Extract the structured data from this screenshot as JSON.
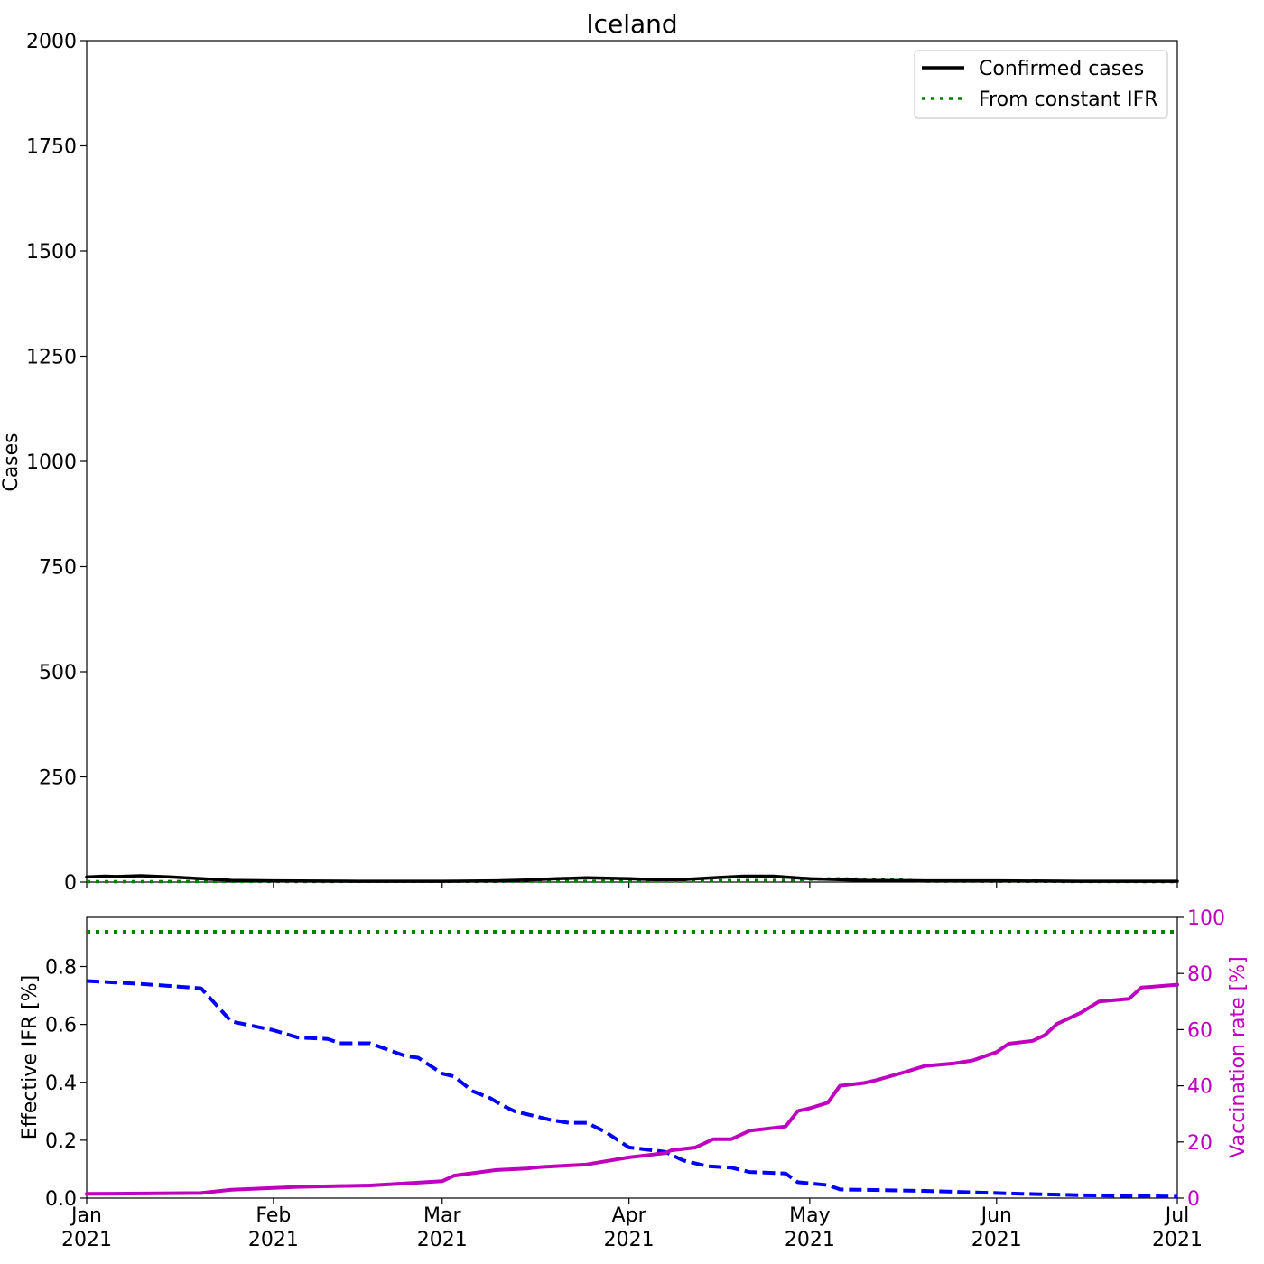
{
  "chart_data": [
    {
      "type": "line",
      "title": "Iceland",
      "ylabel": "Cases",
      "ylim": [
        0,
        2000
      ],
      "yticks": [
        0,
        250,
        500,
        750,
        1000,
        1250,
        1500,
        1750,
        2000
      ],
      "xlim": [
        "2021-01-01",
        "2021-07-01"
      ],
      "legend": {
        "placement": "top-right"
      },
      "series": [
        {
          "name": "Confirmed cases",
          "style": "solid",
          "color": "#000000",
          "points": [
            [
              "2021-01-01",
              12
            ],
            [
              "2021-01-04",
              14
            ],
            [
              "2021-01-06",
              13
            ],
            [
              "2021-01-10",
              15
            ],
            [
              "2021-01-15",
              12
            ],
            [
              "2021-01-20",
              8
            ],
            [
              "2021-01-25",
              4
            ],
            [
              "2021-02-01",
              3
            ],
            [
              "2021-02-15",
              2
            ],
            [
              "2021-03-01",
              2
            ],
            [
              "2021-03-10",
              3
            ],
            [
              "2021-03-15",
              5
            ],
            [
              "2021-03-20",
              8
            ],
            [
              "2021-03-25",
              10
            ],
            [
              "2021-04-01",
              8
            ],
            [
              "2021-04-05",
              6
            ],
            [
              "2021-04-10",
              6
            ],
            [
              "2021-04-15",
              10
            ],
            [
              "2021-04-20",
              14
            ],
            [
              "2021-04-25",
              14
            ],
            [
              "2021-05-01",
              8
            ],
            [
              "2021-05-10",
              4
            ],
            [
              "2021-05-20",
              3
            ],
            [
              "2021-06-01",
              3
            ],
            [
              "2021-06-15",
              2
            ],
            [
              "2021-07-01",
              2
            ]
          ]
        },
        {
          "name": "From constant IFR",
          "style": "dotted",
          "color": "#008000",
          "points": [
            [
              "2021-01-01",
              1
            ],
            [
              "2021-04-01",
              2
            ],
            [
              "2021-04-25",
              4
            ],
            [
              "2021-05-05",
              8
            ],
            [
              "2021-05-15",
              6
            ],
            [
              "2021-05-20",
              2
            ],
            [
              "2021-07-01",
              1
            ]
          ]
        }
      ]
    },
    {
      "type": "line",
      "ylabel": "Effective IFR [%]",
      "ylim": [
        0,
        0.97
      ],
      "yticks": [
        "0.0",
        "0.2",
        "0.4",
        "0.6",
        "0.8"
      ],
      "y2label": "Vaccination rate [%]",
      "y2lim": [
        0,
        100
      ],
      "y2ticks": [
        0,
        20,
        40,
        60,
        80,
        100
      ],
      "x_tick_labels": [
        [
          "Jan",
          "2021"
        ],
        [
          "Feb",
          "2021"
        ],
        [
          "Mar",
          "2021"
        ],
        [
          "Apr",
          "2021"
        ],
        [
          "May",
          "2021"
        ],
        [
          "Jun",
          "2021"
        ],
        [
          "Jul",
          "2021"
        ]
      ],
      "x_ticks": [
        "2021-01-01",
        "2021-02-01",
        "2021-03-01",
        "2021-04-01",
        "2021-05-01",
        "2021-06-01",
        "2021-07-01"
      ],
      "series": [
        {
          "style": "dotted",
          "color": "#008000",
          "axis": "left",
          "points": [
            [
              "2021-01-01",
              0.92
            ],
            [
              "2021-07-01",
              0.92
            ]
          ]
        },
        {
          "style": "dashed",
          "color": "#0000ff",
          "axis": "left",
          "points": [
            [
              "2021-01-01",
              0.75
            ],
            [
              "2021-01-10",
              0.74
            ],
            [
              "2021-01-20",
              0.725
            ],
            [
              "2021-01-25",
              0.61
            ],
            [
              "2021-02-01",
              0.58
            ],
            [
              "2021-02-05",
              0.555
            ],
            [
              "2021-02-10",
              0.55
            ],
            [
              "2021-02-12",
              0.535
            ],
            [
              "2021-02-17",
              0.535
            ],
            [
              "2021-02-23",
              0.49
            ],
            [
              "2021-02-25",
              0.485
            ],
            [
              "2021-03-01",
              0.43
            ],
            [
              "2021-03-03",
              0.42
            ],
            [
              "2021-03-06",
              0.37
            ],
            [
              "2021-03-09",
              0.345
            ],
            [
              "2021-03-11",
              0.32
            ],
            [
              "2021-03-13",
              0.3
            ],
            [
              "2021-03-15",
              0.29
            ],
            [
              "2021-03-17",
              0.28
            ],
            [
              "2021-03-19",
              0.27
            ],
            [
              "2021-03-22",
              0.26
            ],
            [
              "2021-03-25",
              0.26
            ],
            [
              "2021-03-28",
              0.23
            ],
            [
              "2021-04-01",
              0.175
            ],
            [
              "2021-04-07",
              0.16
            ],
            [
              "2021-04-10",
              0.13
            ],
            [
              "2021-04-14",
              0.11
            ],
            [
              "2021-04-18",
              0.105
            ],
            [
              "2021-04-21",
              0.09
            ],
            [
              "2021-04-27",
              0.085
            ],
            [
              "2021-04-29",
              0.055
            ],
            [
              "2021-05-04",
              0.045
            ],
            [
              "2021-05-06",
              0.03
            ],
            [
              "2021-05-20",
              0.025
            ],
            [
              "2021-06-05",
              0.015
            ],
            [
              "2021-06-15",
              0.01
            ],
            [
              "2021-07-01",
              0.005
            ]
          ]
        },
        {
          "style": "solid",
          "color": "#bf00bf",
          "axis": "right",
          "points": [
            [
              "2021-01-01",
              1.5
            ],
            [
              "2021-01-20",
              1.8
            ],
            [
              "2021-01-25",
              3
            ],
            [
              "2021-02-05",
              4
            ],
            [
              "2021-02-17",
              4.5
            ],
            [
              "2021-02-25",
              5.5
            ],
            [
              "2021-03-01",
              6
            ],
            [
              "2021-03-03",
              8
            ],
            [
              "2021-03-10",
              10
            ],
            [
              "2021-03-15",
              10.5
            ],
            [
              "2021-03-17",
              11
            ],
            [
              "2021-03-25",
              12
            ],
            [
              "2021-04-01",
              14.5
            ],
            [
              "2021-04-07",
              16
            ],
            [
              "2021-04-08",
              17
            ],
            [
              "2021-04-12",
              18
            ],
            [
              "2021-04-15",
              21
            ],
            [
              "2021-04-18",
              21
            ],
            [
              "2021-04-21",
              24
            ],
            [
              "2021-04-27",
              25.5
            ],
            [
              "2021-04-29",
              31
            ],
            [
              "2021-05-01",
              32
            ],
            [
              "2021-05-04",
              34
            ],
            [
              "2021-05-06",
              40
            ],
            [
              "2021-05-10",
              41
            ],
            [
              "2021-05-12",
              42
            ],
            [
              "2021-05-17",
              45
            ],
            [
              "2021-05-20",
              47
            ],
            [
              "2021-05-25",
              48
            ],
            [
              "2021-05-28",
              49
            ],
            [
              "2021-06-01",
              52
            ],
            [
              "2021-06-03",
              55
            ],
            [
              "2021-06-07",
              56
            ],
            [
              "2021-06-09",
              58
            ],
            [
              "2021-06-11",
              62
            ],
            [
              "2021-06-15",
              66
            ],
            [
              "2021-06-18",
              70
            ],
            [
              "2021-06-23",
              71
            ],
            [
              "2021-06-25",
              75
            ],
            [
              "2021-07-01",
              76
            ]
          ]
        }
      ]
    }
  ]
}
